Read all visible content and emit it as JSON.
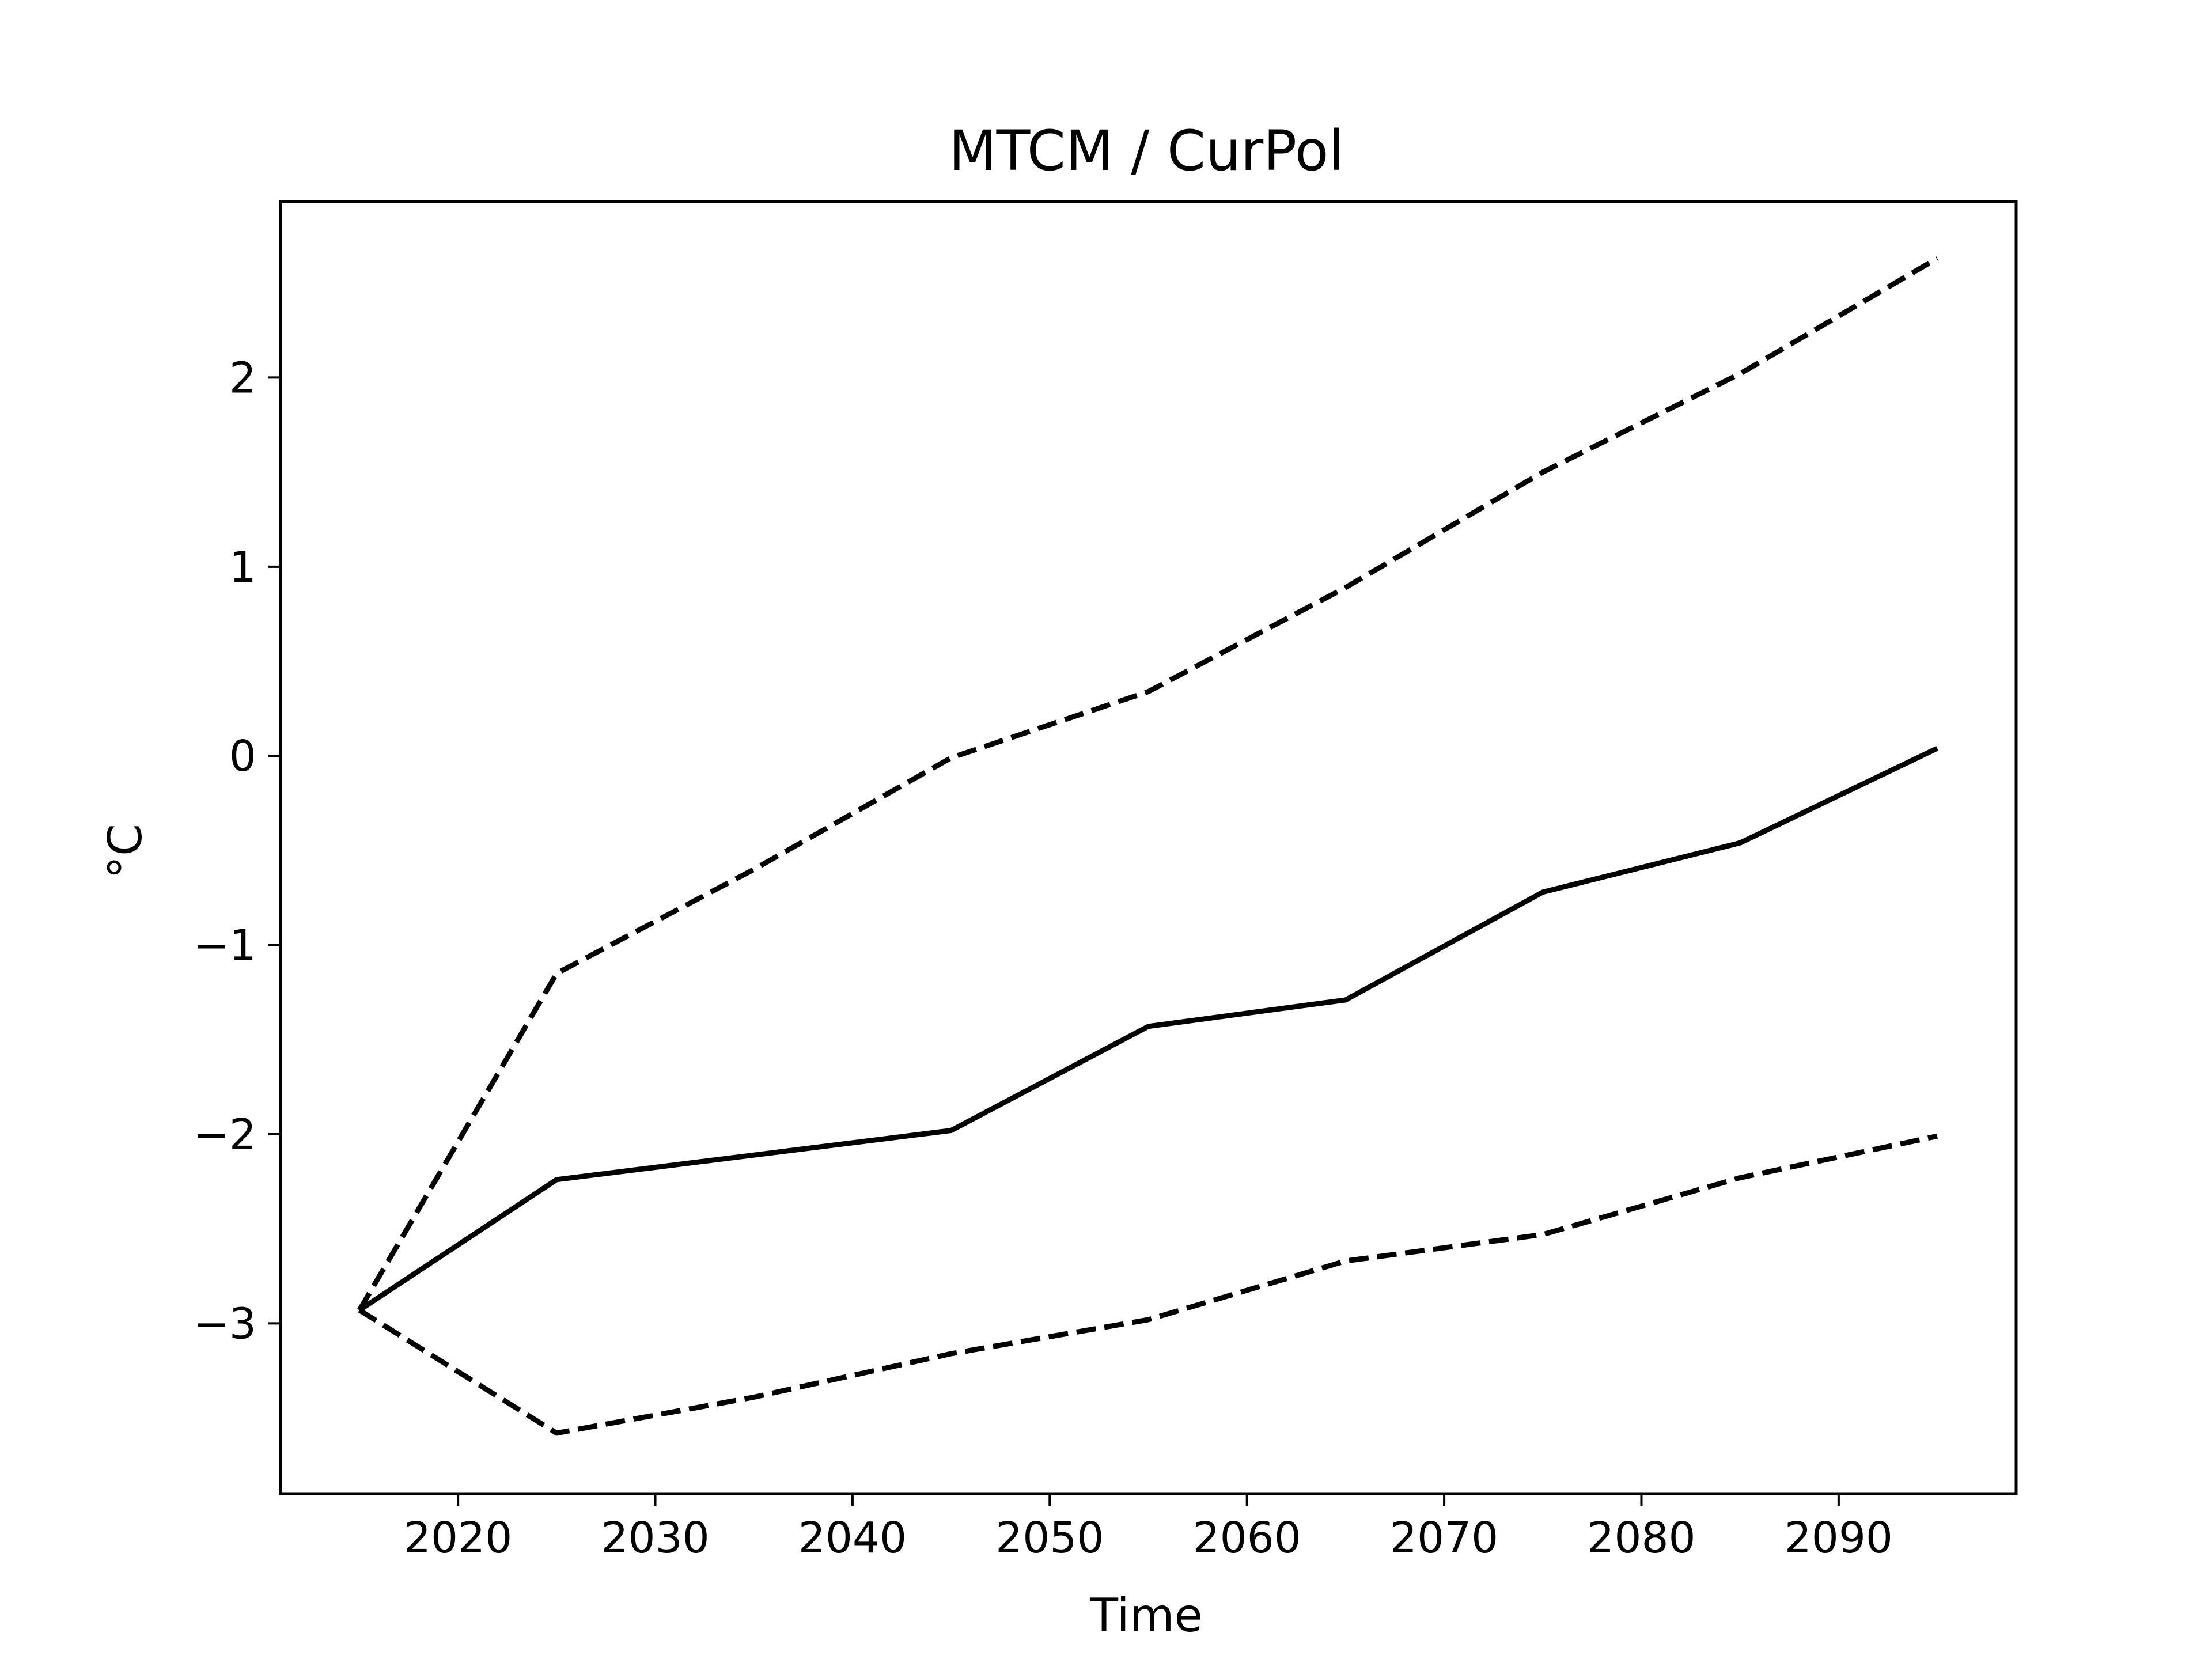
{
  "chart_data": {
    "type": "line",
    "title": "MTCM / CurPol",
    "xlabel": "Time",
    "ylabel": "°C",
    "xlim": [
      2011,
      2099
    ],
    "ylim": [
      -3.9,
      2.93
    ],
    "grid": false,
    "legend": "none",
    "x_ticks": [
      2020,
      2030,
      2040,
      2050,
      2060,
      2070,
      2080,
      2090
    ],
    "y_ticks": [
      -3,
      -2,
      -1,
      0,
      1,
      2
    ],
    "y_tick_labels": [
      "−3",
      "−2",
      "−1",
      "0",
      "1",
      "2"
    ],
    "x": [
      2015,
      2025,
      2035,
      2045,
      2055,
      2065,
      2075,
      2085,
      2095
    ],
    "series": [
      {
        "style": "dashed",
        "color": "#000000",
        "values": [
          -2.93,
          -1.15,
          -0.6,
          -0.01,
          0.34,
          0.89,
          1.5,
          2.02,
          2.63
        ]
      },
      {
        "style": "solid",
        "color": "#000000",
        "values": [
          -2.93,
          -2.24,
          -2.11,
          -1.98,
          -1.43,
          -1.29,
          -0.72,
          -0.46,
          0.04
        ]
      },
      {
        "style": "dashed",
        "color": "#000000",
        "values": [
          -2.93,
          -3.58,
          -3.39,
          -3.16,
          -2.98,
          -2.67,
          -2.53,
          -2.23,
          -2.01
        ]
      }
    ]
  }
}
